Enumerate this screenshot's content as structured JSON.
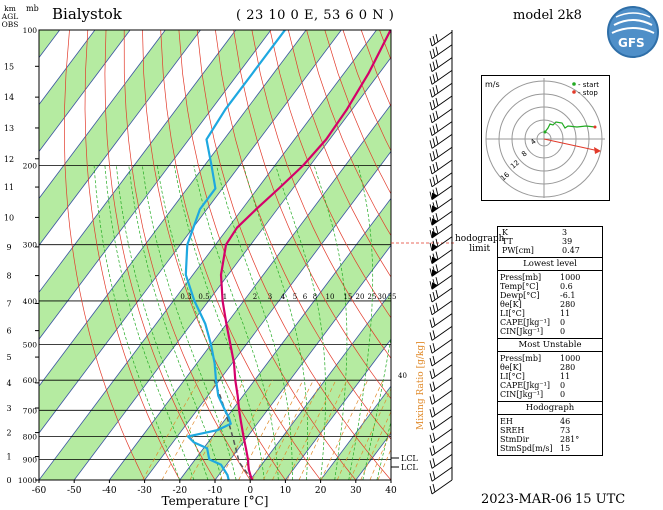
{
  "header": {
    "station": "Bialystok",
    "coords": "( 23 10 0 E, 53 6 0 N )",
    "model": "model 2k8",
    "logo_text": "GFS"
  },
  "footer": {
    "date": "2023-MAR-06",
    "time": "15 UTC"
  },
  "colors": {
    "temperature": "#d4006a",
    "dewpoint": "#1ea8e0",
    "dry_adiabat": "#e23a2a",
    "moist_adiabat": "#22aa22",
    "mixing_ratio": "#e08a2a",
    "green_band": "#a8e890",
    "parcel": "#555555"
  },
  "chart_data": {
    "type": "skew-t",
    "title": "Bialystok",
    "xlabel": "Temperature [°C]",
    "x_ticks": [
      -60,
      -50,
      -40,
      -30,
      -20,
      -10,
      0,
      10,
      20,
      30,
      40
    ],
    "xlim": [
      -60,
      40
    ],
    "pressure_ticks": [
      1000,
      900,
      800,
      700,
      600,
      500,
      400,
      300,
      200,
      100
    ],
    "height_ticks_km": [
      0,
      1,
      2,
      3,
      4,
      5,
      6,
      7,
      8,
      9,
      10,
      11,
      12,
      13,
      14,
      15
    ],
    "height_axis_label": [
      "km",
      "AGL",
      "OBS"
    ],
    "pressure_axis_label": "mb",
    "mixing_ratio_label": "Mixing Ratio [g/kg]",
    "mixing_ratio_ticks": [
      "0.3",
      "0.5",
      "1",
      "2",
      "3",
      "4",
      "5",
      "6",
      "8",
      "10",
      "15",
      "20",
      "25",
      "30",
      "35"
    ],
    "mixing_ratio_40": "40",
    "lcl_labels": [
      "LCL",
      "LCL"
    ],
    "temperature_profile": [
      {
        "p": 1000,
        "t": 0.6
      },
      {
        "p": 975,
        "t": -1.0
      },
      {
        "p": 950,
        "t": -2.5
      },
      {
        "p": 925,
        "t": -3.8
      },
      {
        "p": 900,
        "t": -5.0
      },
      {
        "p": 850,
        "t": -8.0
      },
      {
        "p": 800,
        "t": -11.2
      },
      {
        "p": 750,
        "t": -14.5
      },
      {
        "p": 700,
        "t": -18.0
      },
      {
        "p": 650,
        "t": -21.5
      },
      {
        "p": 600,
        "t": -25.5
      },
      {
        "p": 550,
        "t": -29.5
      },
      {
        "p": 500,
        "t": -34.5
      },
      {
        "p": 450,
        "t": -40.0
      },
      {
        "p": 400,
        "t": -46.0
      },
      {
        "p": 350,
        "t": -52.0
      },
      {
        "p": 300,
        "t": -57.0
      },
      {
        "p": 275,
        "t": -57.5
      },
      {
        "p": 250,
        "t": -56.0
      },
      {
        "p": 225,
        "t": -54.0
      },
      {
        "p": 200,
        "t": -52.0
      },
      {
        "p": 175,
        "t": -51.0
      },
      {
        "p": 150,
        "t": -51.5
      },
      {
        "p": 125,
        "t": -53.0
      },
      {
        "p": 100,
        "t": -56.0
      }
    ],
    "dewpoint_profile": [
      {
        "p": 1000,
        "t": -6.1
      },
      {
        "p": 975,
        "t": -7.5
      },
      {
        "p": 950,
        "t": -9.5
      },
      {
        "p": 925,
        "t": -11.5
      },
      {
        "p": 900,
        "t": -16.0
      },
      {
        "p": 875,
        "t": -17.5
      },
      {
        "p": 850,
        "t": -19.0
      },
      {
        "p": 825,
        "t": -24.0
      },
      {
        "p": 800,
        "t": -27.0
      },
      {
        "p": 775,
        "t": -20.0
      },
      {
        "p": 750,
        "t": -17.5
      },
      {
        "p": 725,
        "t": -19.5
      },
      {
        "p": 700,
        "t": -22.0
      },
      {
        "p": 650,
        "t": -27.0
      },
      {
        "p": 600,
        "t": -31.0
      },
      {
        "p": 550,
        "t": -35.0
      },
      {
        "p": 500,
        "t": -40.0
      },
      {
        "p": 450,
        "t": -46.0
      },
      {
        "p": 400,
        "t": -54.0
      },
      {
        "p": 350,
        "t": -62.0
      },
      {
        "p": 300,
        "t": -68.0
      },
      {
        "p": 250,
        "t": -72.0
      },
      {
        "p": 225,
        "t": -72.0
      },
      {
        "p": 200,
        "t": -78.0
      },
      {
        "p": 175,
        "t": -85.0
      },
      {
        "p": 150,
        "t": -86.0
      },
      {
        "p": 125,
        "t": -86.0
      },
      {
        "p": 100,
        "t": -86.0
      }
    ],
    "parcel_profile": [
      {
        "p": 1000,
        "t": 0.6
      },
      {
        "p": 920,
        "t": -6.3
      },
      {
        "p": 900,
        "t": -7.7
      },
      {
        "p": 850,
        "t": -10.9
      },
      {
        "p": 800,
        "t": -14.3
      },
      {
        "p": 750,
        "t": -18.0
      },
      {
        "p": 700,
        "t": -22.0
      },
      {
        "p": 650,
        "t": -26.5
      },
      {
        "p": 600,
        "t": -31.5
      }
    ]
  },
  "hodograph": {
    "unit_label": "m/s",
    "legend_start": "- start",
    "legend_stop": "- stop",
    "ring_labels": [
      "4",
      "8",
      "12",
      "16"
    ],
    "limit_label": [
      "hodograph",
      "limit"
    ]
  },
  "indices": {
    "top": [
      {
        "label": "K",
        "value": "3"
      },
      {
        "label": "TT",
        "value": "39"
      },
      {
        "label": "PW[cm]",
        "value": "0.47"
      }
    ],
    "lowest_level_title": "Lowest level",
    "lowest_level": [
      {
        "label": "Press[mb]",
        "value": "1000"
      },
      {
        "label": "Temp[°C]",
        "value": "0.6"
      },
      {
        "label": "Dewp[°C]",
        "value": "-6.1"
      },
      {
        "label": "θe[K]",
        "value": "280"
      },
      {
        "label": "LI[°C]",
        "value": "11"
      },
      {
        "label": "CAPE[Jkg⁻¹]",
        "value": "0"
      },
      {
        "label": "CIN[Jkg⁻¹]",
        "value": "0"
      }
    ],
    "most_unstable_title": "Most Unstable",
    "most_unstable": [
      {
        "label": "Press[mb]",
        "value": "1000"
      },
      {
        "label": "θe[K]",
        "value": "280"
      },
      {
        "label": "LI[°C]",
        "value": "11"
      },
      {
        "label": "CAPE[Jkg⁻¹]",
        "value": "0"
      },
      {
        "label": "CIN[Jkg⁻¹]",
        "value": "0"
      }
    ],
    "hodograph_title": "Hodograph",
    "hodograph_values": [
      {
        "label": "EH",
        "value": "46"
      },
      {
        "label": "SREH",
        "value": "73"
      },
      {
        "label": "StmDir",
        "value": "281°"
      },
      {
        "label": "StmSpd[m/s]",
        "value": "15"
      }
    ]
  }
}
